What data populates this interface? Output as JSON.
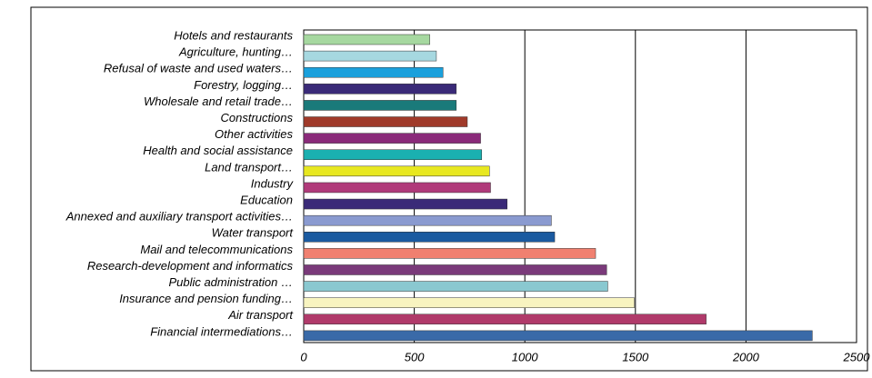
{
  "chart_data": {
    "type": "barh",
    "categories": [
      "Hotels and restaurants",
      "Agriculture, hunting…",
      "Refusal of waste and used waters…",
      "Forestry, logging…",
      "Wholesale and retail trade…",
      "Constructions",
      "Other activities",
      "Health and social assistance",
      "Land transport…",
      "Industry",
      "Education",
      "Annexed and auxiliary transport activities…",
      "Water transport",
      "Mail and telecommunications",
      "Research-development and informatics",
      "Public administration …",
      "Insurance and pension funding…",
      "Air transport",
      "Financial intermediations…"
    ],
    "values": [
      570,
      600,
      630,
      690,
      690,
      740,
      800,
      805,
      840,
      845,
      920,
      1120,
      1135,
      1320,
      1370,
      1375,
      1495,
      1820,
      2300
    ],
    "colors": [
      "#a6d8a0",
      "#a6d8e0",
      "#1aa0dc",
      "#3a2a78",
      "#1a7a7a",
      "#a03a2a",
      "#8a2a7a",
      "#1ab0b0",
      "#e8e820",
      "#b03a7a",
      "#3a2a78",
      "#8a9ad0",
      "#1a5aa0",
      "#f08070",
      "#7a3a7a",
      "#8ac8d0",
      "#f8f4c0",
      "#b03a6a",
      "#3a6aa8"
    ],
    "xlim": [
      0,
      2500
    ],
    "xticks": [
      0,
      500,
      1000,
      1500,
      2000,
      2500
    ],
    "grid": true
  }
}
